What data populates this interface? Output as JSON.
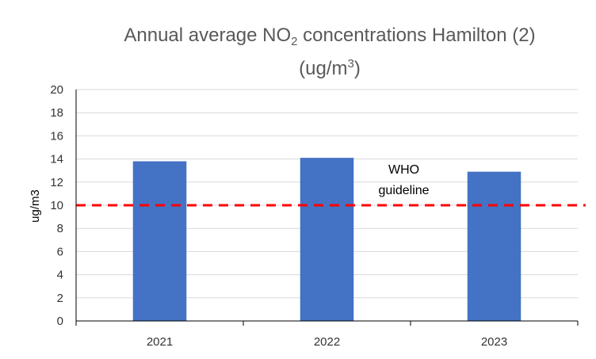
{
  "chart_data": {
    "type": "bar",
    "title_parts": {
      "prefix": "Annual average NO",
      "sub": "2",
      "suffix": " concentrations Hamilton (2)",
      "unit_prefix": "(ug/m",
      "unit_sup": "3",
      "unit_suffix": ")"
    },
    "ylabel": "ug/m3",
    "categories": [
      "2021",
      "2022",
      "2023"
    ],
    "values": [
      13.8,
      14.1,
      12.9
    ],
    "ylim": [
      0,
      20
    ],
    "yticks": [
      0,
      2,
      4,
      6,
      8,
      10,
      12,
      14,
      16,
      18,
      20
    ],
    "grid": true,
    "reference_line": {
      "value": 10,
      "label_line1": "WHO",
      "label_line2": "guideline",
      "color": "#ff0000",
      "style": "dashed"
    },
    "bar_color": "#4472c4",
    "grid_color": "#d9d9d9"
  }
}
